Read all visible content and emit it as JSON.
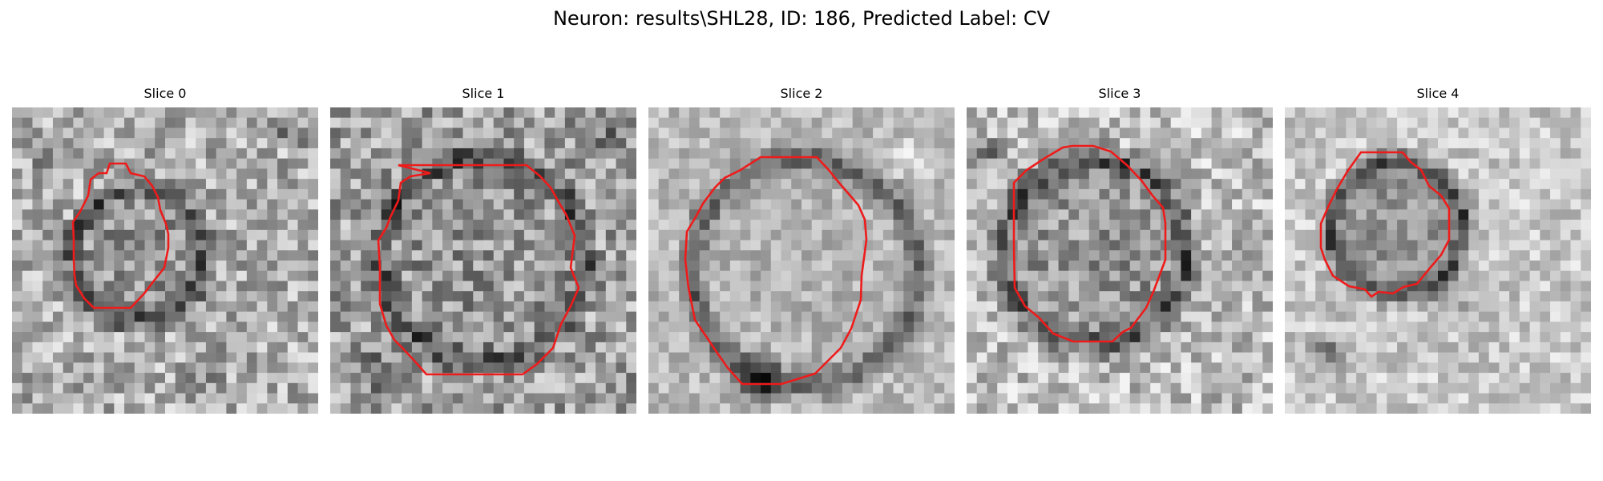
{
  "figure": {
    "title": "Neuron: results\\SHL28, ID: 186, Predicted Label: CV"
  },
  "colors": {
    "contour": "#ee1b1b",
    "background": "#ffffff"
  },
  "panels": [
    {
      "title": "Slice 0"
    },
    {
      "title": "Slice 1"
    },
    {
      "title": "Slice 2"
    },
    {
      "title": "Slice 3"
    },
    {
      "title": "Slice 4"
    }
  ]
}
